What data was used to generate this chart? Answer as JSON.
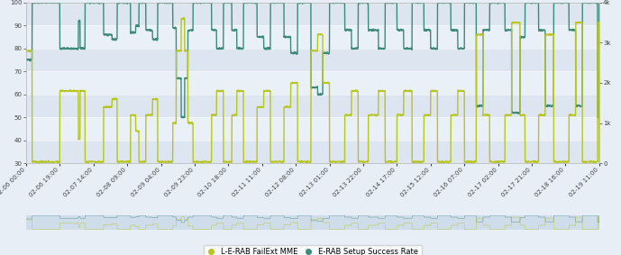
{
  "background_color": "#e8eef5",
  "plot_bg_color": "#e8eef5",
  "band_colors": [
    "#dde5f0",
    "#eaf0f8"
  ],
  "line1_color": "#3d8a7a",
  "line2_color": "#b8c420",
  "line1_label": "E-RAB Setup Success Rate",
  "line2_label": "L-E-RAB FailExt MME",
  "line_width": 1.0,
  "legend_fontsize": 6,
  "tick_fontsize": 5,
  "figsize": [
    6.89,
    2.83
  ],
  "dpi": 100,
  "left_ylim": [
    30,
    100
  ],
  "right_ylim": [
    0,
    4000
  ],
  "left_yticks": [
    30,
    40,
    50,
    60,
    70,
    80,
    90,
    100
  ],
  "right_yticks": [
    0,
    1000,
    2000,
    3000,
    4000
  ],
  "right_yticklabels": [
    "0",
    "1k",
    "2k",
    "3k",
    "4k"
  ],
  "x_tick_labels": [
    "02-06 00:00",
    "02-06 19:00",
    "02-07 14:00",
    "02-08 09:00",
    "02-09 04:00",
    "02-09 23:00",
    "02-10 18:00",
    "02-11 11:00",
    "02-12 08:00",
    "02-13 01:00",
    "02-13 22:00",
    "02-14 17:00",
    "02-15 12:00",
    "02-16 07:00",
    "02-17 02:00",
    "02-17 21:00",
    "02-18 16:00",
    "02-19 11:00"
  ],
  "sr_segments": [
    {
      "t0": 0.0,
      "t1": 0.18,
      "v": 75
    },
    {
      "t0": 0.18,
      "t1": 1.0,
      "v": 100
    },
    {
      "t0": 1.0,
      "t1": 1.55,
      "v": 80
    },
    {
      "t0": 1.55,
      "t1": 1.6,
      "v": 92
    },
    {
      "t0": 1.6,
      "t1": 1.75,
      "v": 80
    },
    {
      "t0": 1.75,
      "t1": 2.3,
      "v": 100
    },
    {
      "t0": 2.3,
      "t1": 2.55,
      "v": 86
    },
    {
      "t0": 2.55,
      "t1": 2.7,
      "v": 84
    },
    {
      "t0": 2.7,
      "t1": 3.1,
      "v": 100
    },
    {
      "t0": 3.1,
      "t1": 3.25,
      "v": 87
    },
    {
      "t0": 3.25,
      "t1": 3.35,
      "v": 90
    },
    {
      "t0": 3.35,
      "t1": 3.55,
      "v": 100
    },
    {
      "t0": 3.55,
      "t1": 3.75,
      "v": 88
    },
    {
      "t0": 3.75,
      "t1": 3.9,
      "v": 84
    },
    {
      "t0": 3.9,
      "t1": 4.35,
      "v": 100
    },
    {
      "t0": 4.35,
      "t1": 4.45,
      "v": 89
    },
    {
      "t0": 4.45,
      "t1": 4.6,
      "v": 67
    },
    {
      "t0": 4.6,
      "t1": 4.7,
      "v": 50
    },
    {
      "t0": 4.7,
      "t1": 4.8,
      "v": 67
    },
    {
      "t0": 4.8,
      "t1": 4.95,
      "v": 88
    },
    {
      "t0": 4.95,
      "t1": 5.5,
      "v": 100
    },
    {
      "t0": 5.5,
      "t1": 5.65,
      "v": 88
    },
    {
      "t0": 5.65,
      "t1": 5.85,
      "v": 80
    },
    {
      "t0": 5.85,
      "t1": 6.1,
      "v": 100
    },
    {
      "t0": 6.1,
      "t1": 6.25,
      "v": 88
    },
    {
      "t0": 6.25,
      "t1": 6.45,
      "v": 80
    },
    {
      "t0": 6.45,
      "t1": 6.85,
      "v": 100
    },
    {
      "t0": 6.85,
      "t1": 7.05,
      "v": 85
    },
    {
      "t0": 7.05,
      "t1": 7.25,
      "v": 80
    },
    {
      "t0": 7.25,
      "t1": 7.65,
      "v": 100
    },
    {
      "t0": 7.65,
      "t1": 7.85,
      "v": 85
    },
    {
      "t0": 7.85,
      "t1": 8.05,
      "v": 78
    },
    {
      "t0": 8.05,
      "t1": 8.45,
      "v": 100
    },
    {
      "t0": 8.45,
      "t1": 8.65,
      "v": 63
    },
    {
      "t0": 8.65,
      "t1": 8.8,
      "v": 60
    },
    {
      "t0": 8.8,
      "t1": 9.0,
      "v": 78
    },
    {
      "t0": 9.0,
      "t1": 9.45,
      "v": 100
    },
    {
      "t0": 9.45,
      "t1": 9.65,
      "v": 88
    },
    {
      "t0": 9.65,
      "t1": 9.85,
      "v": 80
    },
    {
      "t0": 9.85,
      "t1": 10.15,
      "v": 100
    },
    {
      "t0": 10.15,
      "t1": 10.45,
      "v": 88
    },
    {
      "t0": 10.45,
      "t1": 10.65,
      "v": 80
    },
    {
      "t0": 10.65,
      "t1": 11.0,
      "v": 100
    },
    {
      "t0": 11.0,
      "t1": 11.2,
      "v": 88
    },
    {
      "t0": 11.2,
      "t1": 11.45,
      "v": 80
    },
    {
      "t0": 11.45,
      "t1": 11.8,
      "v": 100
    },
    {
      "t0": 11.8,
      "t1": 12.0,
      "v": 88
    },
    {
      "t0": 12.0,
      "t1": 12.2,
      "v": 80
    },
    {
      "t0": 12.2,
      "t1": 12.6,
      "v": 100
    },
    {
      "t0": 12.6,
      "t1": 12.8,
      "v": 88
    },
    {
      "t0": 12.8,
      "t1": 13.0,
      "v": 80
    },
    {
      "t0": 13.0,
      "t1": 13.35,
      "v": 100
    },
    {
      "t0": 13.35,
      "t1": 13.55,
      "v": 55
    },
    {
      "t0": 13.55,
      "t1": 13.75,
      "v": 88
    },
    {
      "t0": 13.75,
      "t1": 14.2,
      "v": 100
    },
    {
      "t0": 14.2,
      "t1": 14.4,
      "v": 88
    },
    {
      "t0": 14.4,
      "t1": 14.65,
      "v": 52
    },
    {
      "t0": 14.65,
      "t1": 14.8,
      "v": 85
    },
    {
      "t0": 14.8,
      "t1": 15.2,
      "v": 100
    },
    {
      "t0": 15.2,
      "t1": 15.4,
      "v": 88
    },
    {
      "t0": 15.4,
      "t1": 15.65,
      "v": 55
    },
    {
      "t0": 15.65,
      "t1": 16.1,
      "v": 100
    },
    {
      "t0": 16.1,
      "t1": 16.3,
      "v": 88
    },
    {
      "t0": 16.3,
      "t1": 16.5,
      "v": 55
    },
    {
      "t0": 16.5,
      "t1": 16.95,
      "v": 100
    },
    {
      "t0": 16.95,
      "t1": 17.0,
      "v": 50
    }
  ],
  "mme_segments": [
    {
      "t0": 0.0,
      "t1": 0.18,
      "v": 2800
    },
    {
      "t0": 0.18,
      "t1": 1.0,
      "v": 35
    },
    {
      "t0": 1.0,
      "t1": 1.55,
      "v": 1800
    },
    {
      "t0": 1.55,
      "t1": 1.6,
      "v": 600
    },
    {
      "t0": 1.6,
      "t1": 1.75,
      "v": 1800
    },
    {
      "t0": 1.75,
      "t1": 2.3,
      "v": 35
    },
    {
      "t0": 2.3,
      "t1": 2.55,
      "v": 1400
    },
    {
      "t0": 2.55,
      "t1": 2.7,
      "v": 1600
    },
    {
      "t0": 2.7,
      "t1": 3.1,
      "v": 35
    },
    {
      "t0": 3.1,
      "t1": 3.25,
      "v": 1200
    },
    {
      "t0": 3.25,
      "t1": 3.35,
      "v": 800
    },
    {
      "t0": 3.35,
      "t1": 3.55,
      "v": 35
    },
    {
      "t0": 3.55,
      "t1": 3.75,
      "v": 1200
    },
    {
      "t0": 3.75,
      "t1": 3.9,
      "v": 1600
    },
    {
      "t0": 3.9,
      "t1": 4.35,
      "v": 35
    },
    {
      "t0": 4.35,
      "t1": 4.45,
      "v": 1000
    },
    {
      "t0": 4.45,
      "t1": 4.6,
      "v": 2800
    },
    {
      "t0": 4.6,
      "t1": 4.7,
      "v": 3600
    },
    {
      "t0": 4.7,
      "t1": 4.8,
      "v": 2800
    },
    {
      "t0": 4.8,
      "t1": 4.95,
      "v": 1000
    },
    {
      "t0": 4.95,
      "t1": 5.5,
      "v": 35
    },
    {
      "t0": 5.5,
      "t1": 5.65,
      "v": 1200
    },
    {
      "t0": 5.65,
      "t1": 5.85,
      "v": 1800
    },
    {
      "t0": 5.85,
      "t1": 6.1,
      "v": 35
    },
    {
      "t0": 6.1,
      "t1": 6.25,
      "v": 1200
    },
    {
      "t0": 6.25,
      "t1": 6.45,
      "v": 1800
    },
    {
      "t0": 6.45,
      "t1": 6.85,
      "v": 35
    },
    {
      "t0": 6.85,
      "t1": 7.05,
      "v": 1400
    },
    {
      "t0": 7.05,
      "t1": 7.25,
      "v": 1800
    },
    {
      "t0": 7.25,
      "t1": 7.65,
      "v": 35
    },
    {
      "t0": 7.65,
      "t1": 7.85,
      "v": 1400
    },
    {
      "t0": 7.85,
      "t1": 8.05,
      "v": 2000
    },
    {
      "t0": 8.05,
      "t1": 8.45,
      "v": 35
    },
    {
      "t0": 8.45,
      "t1": 8.65,
      "v": 2800
    },
    {
      "t0": 8.65,
      "t1": 8.8,
      "v": 3200
    },
    {
      "t0": 8.8,
      "t1": 9.0,
      "v": 2000
    },
    {
      "t0": 9.0,
      "t1": 9.45,
      "v": 35
    },
    {
      "t0": 9.45,
      "t1": 9.65,
      "v": 1200
    },
    {
      "t0": 9.65,
      "t1": 9.85,
      "v": 1800
    },
    {
      "t0": 9.85,
      "t1": 10.15,
      "v": 35
    },
    {
      "t0": 10.15,
      "t1": 10.45,
      "v": 1200
    },
    {
      "t0": 10.45,
      "t1": 10.65,
      "v": 1800
    },
    {
      "t0": 10.65,
      "t1": 11.0,
      "v": 35
    },
    {
      "t0": 11.0,
      "t1": 11.2,
      "v": 1200
    },
    {
      "t0": 11.2,
      "t1": 11.45,
      "v": 1800
    },
    {
      "t0": 11.45,
      "t1": 11.8,
      "v": 35
    },
    {
      "t0": 11.8,
      "t1": 12.0,
      "v": 1200
    },
    {
      "t0": 12.0,
      "t1": 12.2,
      "v": 1800
    },
    {
      "t0": 12.2,
      "t1": 12.6,
      "v": 35
    },
    {
      "t0": 12.6,
      "t1": 12.8,
      "v": 1200
    },
    {
      "t0": 12.8,
      "t1": 13.0,
      "v": 1800
    },
    {
      "t0": 13.0,
      "t1": 13.35,
      "v": 35
    },
    {
      "t0": 13.35,
      "t1": 13.55,
      "v": 3200
    },
    {
      "t0": 13.55,
      "t1": 13.75,
      "v": 1200
    },
    {
      "t0": 13.75,
      "t1": 14.2,
      "v": 35
    },
    {
      "t0": 14.2,
      "t1": 14.4,
      "v": 1200
    },
    {
      "t0": 14.4,
      "t1": 14.65,
      "v": 3500
    },
    {
      "t0": 14.65,
      "t1": 14.8,
      "v": 1200
    },
    {
      "t0": 14.8,
      "t1": 15.2,
      "v": 35
    },
    {
      "t0": 15.2,
      "t1": 15.4,
      "v": 1200
    },
    {
      "t0": 15.4,
      "t1": 15.65,
      "v": 3200
    },
    {
      "t0": 15.65,
      "t1": 16.1,
      "v": 35
    },
    {
      "t0": 16.1,
      "t1": 16.3,
      "v": 1200
    },
    {
      "t0": 16.3,
      "t1": 16.5,
      "v": 3500
    },
    {
      "t0": 16.5,
      "t1": 16.95,
      "v": 35
    },
    {
      "t0": 16.95,
      "t1": 17.0,
      "v": 3500
    }
  ]
}
